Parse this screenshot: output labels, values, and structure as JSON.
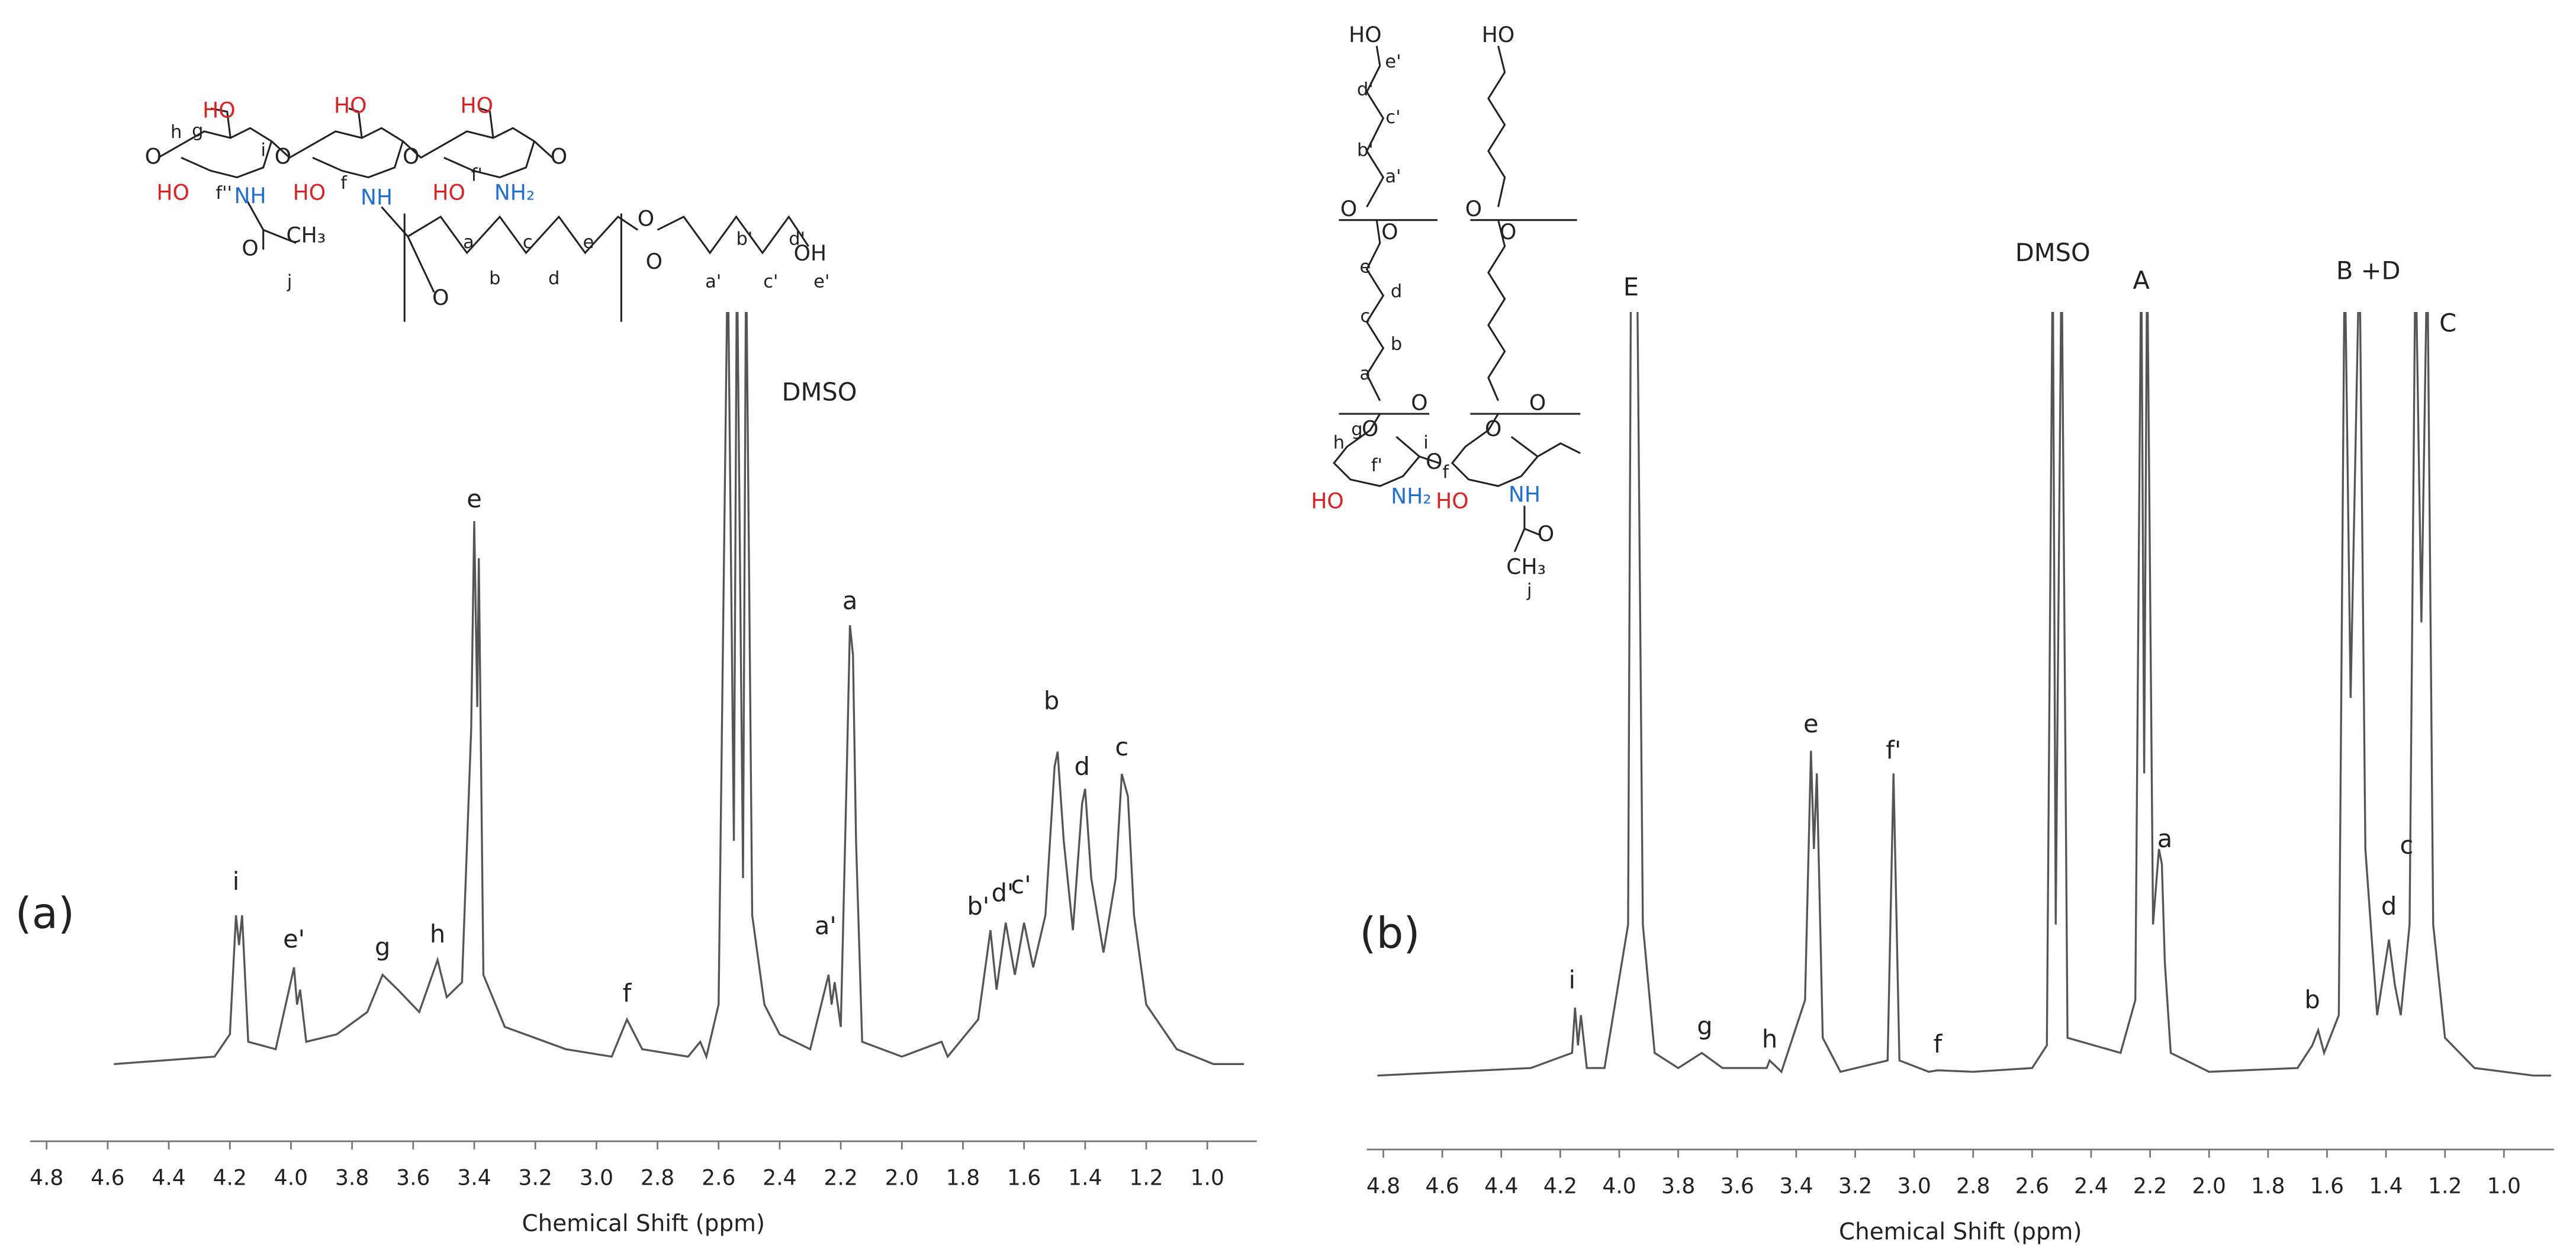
{
  "chart_data": [
    {
      "type": "line",
      "panel_label": "(a)",
      "x_label": "Chemical Shift (ppm)",
      "xlim": [
        4.854,
        0.838
      ],
      "ylim": [
        0,
        100
      ],
      "xticks": [
        4.8,
        4.6,
        4.4,
        4.2,
        {
          "value": 4,
          "label": "4.0"
        },
        3.8,
        3.6,
        3.4,
        3.2,
        {
          "value": 3,
          "label": "3.0"
        },
        2.8,
        2.6,
        2.4,
        2.2,
        {
          "value": 2,
          "label": "2.0"
        },
        1.8,
        1.6,
        1.4,
        1.2,
        {
          "value": 1,
          "label": "1.0"
        }
      ],
      "x": [
        4.58,
        4.25,
        4.2,
        4.18,
        4.17,
        4.16,
        4.14,
        4.05,
        3.99,
        3.98,
        3.97,
        3.95,
        3.85,
        3.75,
        3.7,
        3.65,
        3.58,
        3.52,
        3.49,
        3.44,
        3.41,
        3.4,
        3.39,
        3.385,
        3.37,
        3.3,
        3.1,
        2.95,
        2.9,
        2.85,
        2.7,
        2.66,
        2.64,
        2.6,
        2.57,
        2.55,
        2.54,
        2.52,
        2.51,
        2.49,
        2.45,
        2.4,
        2.3,
        2.24,
        2.23,
        2.22,
        2.2,
        2.18,
        2.17,
        2.16,
        2.15,
        2.13,
        2.0,
        1.87,
        1.85,
        1.75,
        1.71,
        1.69,
        1.66,
        1.63,
        1.6,
        1.57,
        1.53,
        1.5,
        1.49,
        1.47,
        1.44,
        1.41,
        1.4,
        1.38,
        1.34,
        1.3,
        1.28,
        1.26,
        1.24,
        1.2,
        1.1,
        0.98,
        0.88
      ],
      "series": [
        {
          "color": "#555555",
          "values": [
            0,
            1,
            4,
            20,
            16,
            20,
            3,
            2,
            13,
            8,
            10,
            3,
            4,
            7,
            12,
            10,
            7,
            14,
            9,
            11,
            45,
            73,
            48,
            68,
            12,
            5,
            2,
            1,
            6,
            2,
            1,
            3,
            1,
            8,
            110,
            30,
            110,
            25,
            110,
            20,
            8,
            4,
            2,
            12,
            8,
            11,
            5,
            40,
            59,
            55,
            30,
            3,
            1,
            3,
            1,
            6,
            18,
            10,
            19,
            12,
            19,
            13,
            20,
            40,
            42,
            30,
            18,
            35,
            37,
            25,
            15,
            25,
            39,
            36,
            20,
            8,
            2,
            0,
            0
          ]
        }
      ],
      "annotations": [
        {
          "text": "i",
          "x": 4.18
        },
        {
          "text": "e'",
          "x": 3.99
        },
        {
          "text": "g",
          "x": 3.7
        },
        {
          "text": "h",
          "x": 3.52
        },
        {
          "text": "e",
          "x": 3.4
        },
        {
          "text": "f",
          "x": 2.9
        },
        {
          "text": "DMSO",
          "x": 2.27
        },
        {
          "text": "a'",
          "x": 2.25
        },
        {
          "text": "a",
          "x": 2.17
        },
        {
          "text": "b'",
          "x": 1.75
        },
        {
          "text": "d'",
          "x": 1.67
        },
        {
          "text": "c'",
          "x": 1.61
        },
        {
          "text": "b",
          "x": 1.51
        },
        {
          "text": "d",
          "x": 1.41
        },
        {
          "text": "c",
          "x": 1.28
        }
      ]
    },
    {
      "type": "line",
      "panel_label": "(b)",
      "x_label": "Chemical Shift (ppm)",
      "xlim": [
        4.856,
        0.83
      ],
      "ylim": [
        0,
        100
      ],
      "xticks": [
        4.8,
        4.6,
        4.4,
        4.2,
        {
          "value": 4,
          "label": "4.0"
        },
        3.8,
        3.6,
        3.4,
        3.2,
        {
          "value": 3,
          "label": "3.0"
        },
        2.8,
        2.6,
        2.4,
        2.2,
        {
          "value": 2,
          "label": "2.0"
        },
        1.8,
        1.6,
        1.4,
        1.2,
        {
          "value": 1,
          "label": "1.0"
        }
      ],
      "x": [
        4.82,
        4.3,
        4.16,
        4.15,
        4.14,
        4.13,
        4.11,
        4.05,
        3.97,
        3.96,
        3.95,
        3.94,
        3.92,
        3.88,
        3.8,
        3.72,
        3.65,
        3.5,
        3.49,
        3.45,
        3.37,
        3.35,
        3.34,
        3.33,
        3.31,
        3.25,
        3.09,
        3.07,
        3.05,
        2.95,
        2.92,
        2.8,
        2.6,
        2.55,
        2.53,
        2.52,
        2.5,
        2.48,
        2.3,
        2.25,
        2.23,
        2.22,
        2.21,
        2.19,
        2.17,
        2.16,
        2.15,
        2.13,
        2.0,
        1.7,
        1.65,
        1.63,
        1.61,
        1.56,
        1.54,
        1.52,
        1.49,
        1.47,
        1.43,
        1.39,
        1.37,
        1.35,
        1.32,
        1.3,
        1.28,
        1.26,
        1.24,
        1.2,
        1.1,
        0.9,
        0.84
      ],
      "series": [
        {
          "color": "#555555",
          "values": [
            0,
            1,
            3,
            9,
            4,
            8,
            1,
            1,
            20,
            110,
            105,
            110,
            20,
            3,
            1,
            3,
            1,
            1,
            2,
            0.5,
            10,
            43,
            30,
            40,
            5,
            0.5,
            2,
            40,
            2,
            0.5,
            0.7,
            0.5,
            1,
            4,
            110,
            20,
            110,
            5,
            3,
            10,
            110,
            40,
            110,
            20,
            30,
            28,
            15,
            3,
            0.5,
            1,
            4,
            6,
            3,
            8,
            110,
            50,
            110,
            30,
            8,
            18,
            12,
            8,
            20,
            110,
            60,
            110,
            20,
            5,
            1,
            0,
            0
          ]
        }
      ],
      "annotations": [
        {
          "text": "E",
          "x": 3.96
        },
        {
          "text": "i",
          "x": 4.16
        },
        {
          "text": "g",
          "x": 3.71
        },
        {
          "text": "h",
          "x": 3.49
        },
        {
          "text": "e",
          "x": 3.35
        },
        {
          "text": "f'",
          "x": 3.07
        },
        {
          "text": "f",
          "x": 2.92
        },
        {
          "text": "DMSO",
          "x": 2.53
        },
        {
          "text": "A",
          "x": 2.23
        },
        {
          "text": "a",
          "x": 2.15
        },
        {
          "text": "B +D",
          "x": 1.46
        },
        {
          "text": "C",
          "x": 1.19
        },
        {
          "text": "c",
          "x": 1.33
        },
        {
          "text": "d",
          "x": 1.39
        },
        {
          "text": "b",
          "x": 1.65
        }
      ]
    }
  ],
  "structures": [
    {
      "labels": [
        "HO",
        "HO",
        "HO",
        "h",
        "g",
        "i",
        "HO",
        "f''",
        "NH",
        "f",
        "HO",
        "NH",
        "f'",
        "HO",
        "NH₂",
        "O",
        "O",
        "O",
        "O",
        "O",
        "CH₃",
        "j",
        "O",
        "a",
        "b",
        "c",
        "d",
        "e",
        "O",
        "O",
        "a'",
        "b'",
        "c'",
        "d'",
        "e'",
        "OH"
      ]
    },
    {
      "labels": [
        "HO",
        "e'",
        "d'",
        "c'",
        "b'",
        "a'",
        "O",
        "O",
        "e",
        "d",
        "c",
        "b",
        "a",
        "O",
        "O",
        "h",
        "g",
        "i",
        "f'",
        "HO",
        "NH₂",
        "O",
        "HO",
        "f",
        "NH",
        "O",
        "CH₃",
        "j",
        "HO",
        "O",
        "O",
        "O",
        "O"
      ]
    }
  ]
}
